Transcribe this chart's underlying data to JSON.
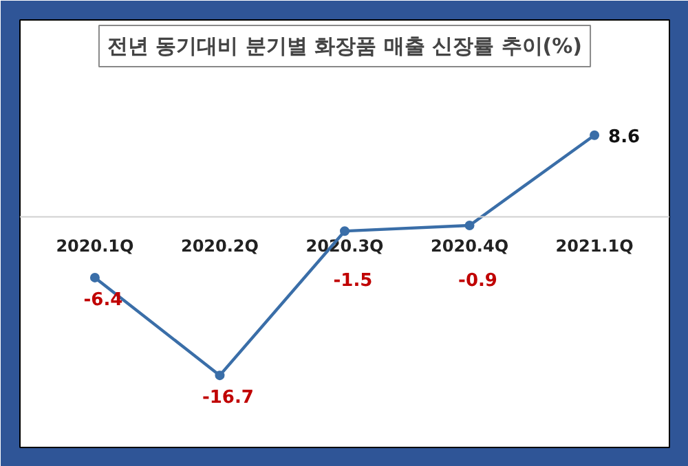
{
  "chart_data": {
    "type": "line",
    "title": "전년 동기대비 분기별 화장품 매출 신장률 추이(%)",
    "categories": [
      "2020.1Q",
      "2020.2Q",
      "2020.3Q",
      "2020.4Q",
      "2021.1Q"
    ],
    "series": [
      {
        "color": "#3a6ea8",
        "values": [
          -6.4,
          -16.7,
          -1.5,
          -0.9,
          8.6
        ]
      }
    ],
    "data_labels": true,
    "marker": "circle",
    "grid": false
  }
}
